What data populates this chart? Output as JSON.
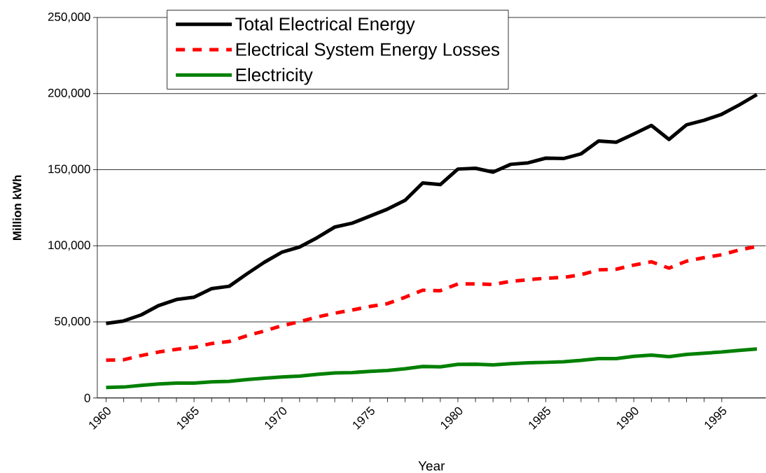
{
  "chart_data": {
    "type": "line",
    "xlabel": "Year",
    "ylabel": "Million kWh",
    "x": [
      1960,
      1961,
      1962,
      1963,
      1964,
      1965,
      1966,
      1967,
      1968,
      1969,
      1970,
      1971,
      1972,
      1973,
      1974,
      1975,
      1976,
      1977,
      1978,
      1979,
      1980,
      1981,
      1982,
      1983,
      1984,
      1985,
      1986,
      1987,
      1988,
      1989,
      1990,
      1991,
      1992,
      1993,
      1994,
      1995,
      1996,
      1997
    ],
    "series": [
      {
        "name": "Total Electrical Energy",
        "color": "#000000",
        "line_style": "solid",
        "values": [
          49000,
          50600,
          54600,
          60800,
          64700,
          66200,
          71800,
          73400,
          81500,
          89200,
          95800,
          99200,
          105300,
          112300,
          114900,
          119500,
          124100,
          129900,
          141300,
          140200,
          150400,
          150900,
          148400,
          153500,
          154500,
          157600,
          157300,
          160400,
          168800,
          168000,
          173400,
          179100,
          169900,
          179500,
          182500,
          186400,
          192600,
          199400
        ]
      },
      {
        "name": "Electrical System Energy Losses",
        "color": "#ff0000",
        "line_style": "dashed",
        "values": [
          24800,
          25100,
          27900,
          30200,
          32000,
          33200,
          35800,
          37100,
          40900,
          44000,
          47500,
          50100,
          53200,
          55700,
          57800,
          60100,
          62000,
          66200,
          70800,
          70500,
          74900,
          75000,
          74600,
          76600,
          77700,
          78700,
          79200,
          81000,
          84200,
          84600,
          87300,
          89500,
          85300,
          89900,
          92200,
          94100,
          97300,
          99600
        ]
      },
      {
        "name": "Electricity",
        "color": "#008000",
        "line_style": "solid",
        "values": [
          6900,
          7200,
          8300,
          9200,
          9800,
          9800,
          10600,
          10900,
          12100,
          13000,
          13800,
          14400,
          15500,
          16400,
          16700,
          17500,
          18100,
          19200,
          20700,
          20500,
          22100,
          22200,
          21700,
          22500,
          23100,
          23400,
          23800,
          24700,
          25900,
          25900,
          27400,
          28200,
          27100,
          28600,
          29400,
          30200,
          31300,
          32200
        ]
      }
    ],
    "xlim": [
      1959.5,
      1997.5
    ],
    "xticks": [
      1960,
      1965,
      1970,
      1975,
      1980,
      1985,
      1990,
      1995
    ],
    "ylim": [
      0,
      250000
    ],
    "yticks": [
      {
        "value": 0,
        "label": "0"
      },
      {
        "value": 50000,
        "label": "50,000"
      },
      {
        "value": 100000,
        "label": "100,000"
      },
      {
        "value": 150000,
        "label": "150,000"
      },
      {
        "value": 200000,
        "label": "200,000"
      },
      {
        "value": 250000,
        "label": "250,000"
      }
    ],
    "grid": "y",
    "legend": "top left",
    "marker": "none"
  }
}
